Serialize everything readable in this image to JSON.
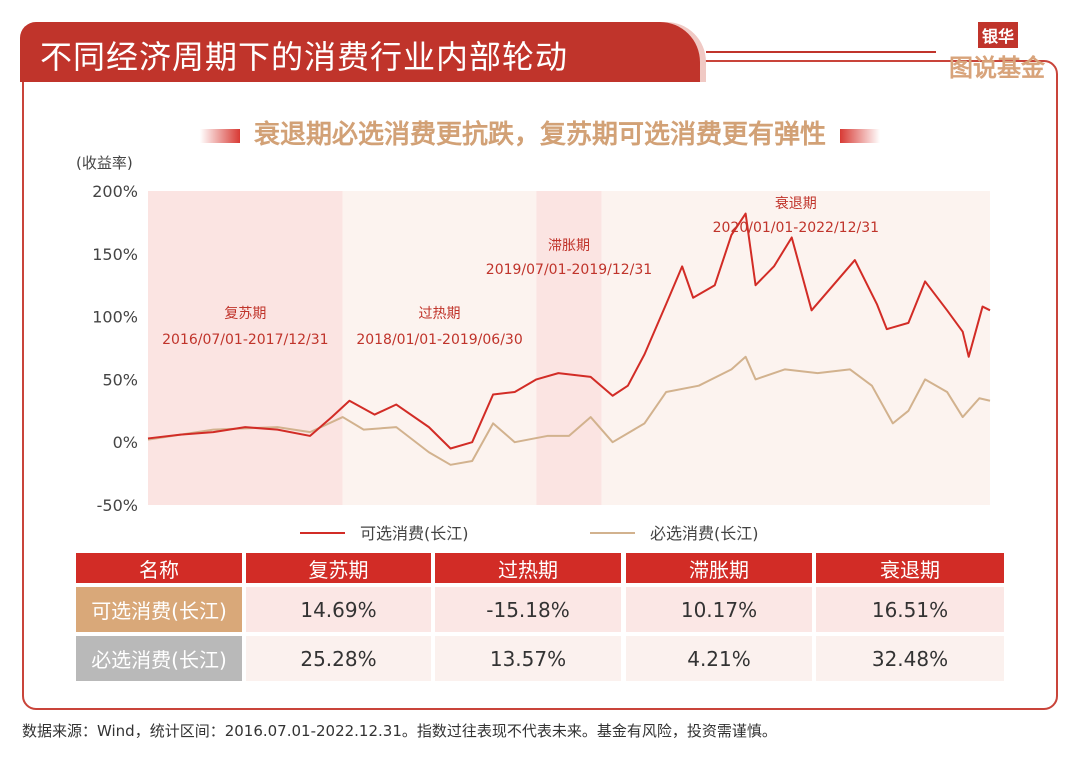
{
  "header": {
    "title": "不同经济周期下的消费行业内部轮动",
    "logo_top": "银华",
    "logo_bottom": "图说基金"
  },
  "subtitle": "衰退期必选消费更抗跌，复苏期可选消费更有弹性",
  "chart_data": {
    "type": "line",
    "ylabel": "(收益率)",
    "ylim": [
      -50,
      200
    ],
    "yticks": [
      "200%",
      "150%",
      "100%",
      "50%",
      "0%",
      "-50%"
    ],
    "ytick_values": [
      200,
      150,
      100,
      50,
      0,
      -50
    ],
    "xlim": [
      "2016-07-01",
      "2022-12-31"
    ],
    "periods": [
      {
        "name": "复苏期",
        "range": "2016/07/01-2017/12/31",
        "start": "2016-07-01",
        "end": "2018-01-01",
        "color": "#fbe4e2"
      },
      {
        "name": "过热期",
        "range": "2018/01/01-2019/06/30",
        "start": "2018-01-01",
        "end": "2019-07-01",
        "color": "#fcf3ef"
      },
      {
        "name": "滞胀期",
        "range": "2019/07/01-2019/12/31",
        "start": "2019-07-01",
        "end": "2020-01-01",
        "color": "#fbe4e2"
      },
      {
        "name": "衰退期",
        "range": "2020/01/01-2022/12/31",
        "start": "2020-01-01",
        "end": "2022-12-31",
        "color": "#fcf3ef"
      }
    ],
    "series": [
      {
        "name": "可选消费(长江)",
        "color": "#d22c26",
        "points": [
          [
            "2016-07-01",
            3
          ],
          [
            "2016-10-01",
            6
          ],
          [
            "2017-01-01",
            8
          ],
          [
            "2017-04-01",
            12
          ],
          [
            "2017-07-01",
            10
          ],
          [
            "2017-10-01",
            5
          ],
          [
            "2017-12-01",
            20
          ],
          [
            "2018-01-20",
            33
          ],
          [
            "2018-04-01",
            22
          ],
          [
            "2018-06-01",
            30
          ],
          [
            "2018-09-01",
            12
          ],
          [
            "2018-11-01",
            -5
          ],
          [
            "2019-01-01",
            0
          ],
          [
            "2019-03-01",
            38
          ],
          [
            "2019-05-01",
            40
          ],
          [
            "2019-07-01",
            50
          ],
          [
            "2019-09-01",
            55
          ],
          [
            "2019-12-01",
            52
          ],
          [
            "2020-02-01",
            37
          ],
          [
            "2020-03-15",
            45
          ],
          [
            "2020-05-01",
            70
          ],
          [
            "2020-07-01",
            110
          ],
          [
            "2020-08-15",
            140
          ],
          [
            "2020-09-15",
            115
          ],
          [
            "2020-11-15",
            125
          ],
          [
            "2021-01-01",
            165
          ],
          [
            "2021-02-10",
            182
          ],
          [
            "2021-03-10",
            125
          ],
          [
            "2021-05-01",
            140
          ],
          [
            "2021-06-20",
            163
          ],
          [
            "2021-08-15",
            105
          ],
          [
            "2021-10-15",
            125
          ],
          [
            "2021-12-15",
            145
          ],
          [
            "2022-02-15",
            110
          ],
          [
            "2022-03-15",
            90
          ],
          [
            "2022-05-15",
            95
          ],
          [
            "2022-07-01",
            128
          ],
          [
            "2022-09-01",
            105
          ],
          [
            "2022-10-15",
            88
          ],
          [
            "2022-11-01",
            68
          ],
          [
            "2022-12-10",
            108
          ],
          [
            "2022-12-31",
            105
          ]
        ]
      },
      {
        "name": "必选消费(长江)",
        "color": "#d2b28e",
        "points": [
          [
            "2016-07-01",
            2
          ],
          [
            "2017-01-01",
            10
          ],
          [
            "2017-07-01",
            12
          ],
          [
            "2017-10-01",
            8
          ],
          [
            "2018-01-01",
            20
          ],
          [
            "2018-03-01",
            10
          ],
          [
            "2018-06-01",
            12
          ],
          [
            "2018-09-01",
            -8
          ],
          [
            "2018-11-01",
            -18
          ],
          [
            "2019-01-01",
            -15
          ],
          [
            "2019-03-01",
            15
          ],
          [
            "2019-05-01",
            0
          ],
          [
            "2019-08-01",
            5
          ],
          [
            "2019-10-01",
            5
          ],
          [
            "2019-12-01",
            20
          ],
          [
            "2020-02-01",
            0
          ],
          [
            "2020-05-01",
            15
          ],
          [
            "2020-07-01",
            40
          ],
          [
            "2020-10-01",
            45
          ],
          [
            "2021-01-01",
            58
          ],
          [
            "2021-02-10",
            68
          ],
          [
            "2021-03-10",
            50
          ],
          [
            "2021-06-01",
            58
          ],
          [
            "2021-09-01",
            55
          ],
          [
            "2021-12-01",
            58
          ],
          [
            "2022-02-01",
            45
          ],
          [
            "2022-04-01",
            15
          ],
          [
            "2022-05-15",
            25
          ],
          [
            "2022-07-01",
            50
          ],
          [
            "2022-09-01",
            40
          ],
          [
            "2022-10-15",
            20
          ],
          [
            "2022-12-01",
            35
          ],
          [
            "2022-12-31",
            33
          ]
        ]
      }
    ]
  },
  "table": {
    "headers": [
      "名称",
      "复苏期",
      "过热期",
      "滞胀期",
      "衰退期"
    ],
    "rows": [
      {
        "name": "可选消费(长江)",
        "values": [
          "14.69%",
          "-15.18%",
          "10.17%",
          "16.51%"
        ]
      },
      {
        "name": "必选消费(长江)",
        "values": [
          "25.28%",
          "13.57%",
          "4.21%",
          "32.48%"
        ]
      }
    ]
  },
  "footer": "数据来源：Wind，统计区间：2016.07.01-2022.12.31。指数过往表现不代表未来。基金有风险，投资需谨慎。"
}
